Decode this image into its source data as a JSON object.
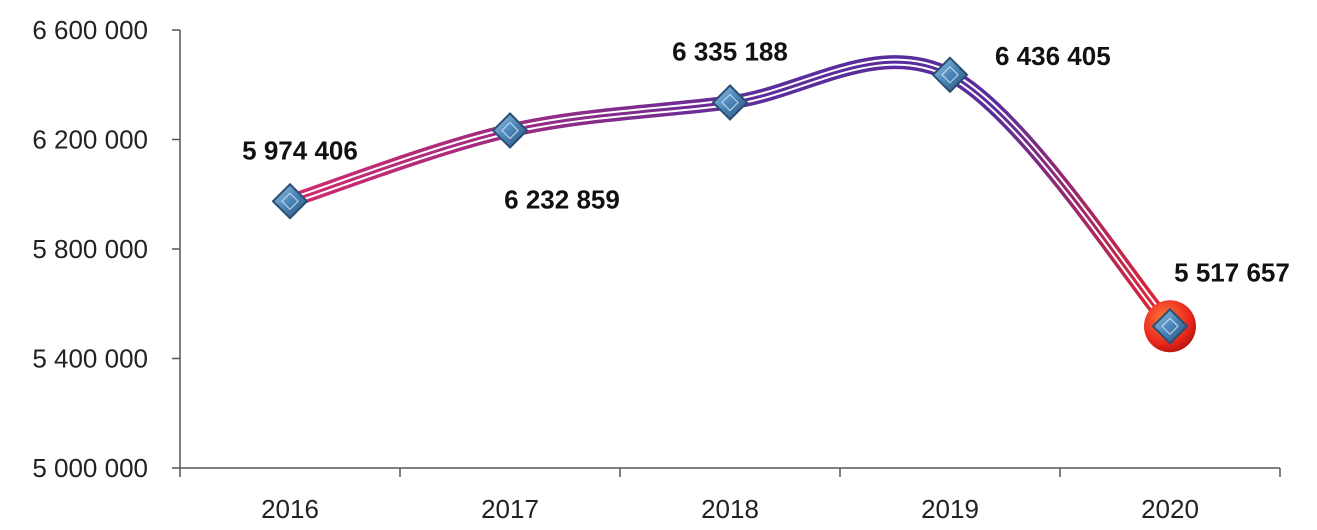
{
  "chart_data": {
    "type": "line",
    "title": "",
    "xlabel": "",
    "ylabel": "",
    "categories": [
      "2016",
      "2017",
      "2018",
      "2019",
      "2020"
    ],
    "series": [
      {
        "values": [
          5974406,
          6232859,
          6335188,
          6436405,
          5517657
        ]
      }
    ],
    "data_labels": [
      "5 974 406",
      "6 232 859",
      "6 335 188",
      "6 436 405",
      "5 517 657"
    ],
    "y_ticks": [
      5000000,
      5400000,
      5800000,
      6200000,
      6600000
    ],
    "y_tick_labels": [
      "5 000 000",
      "5 400 000",
      "5 800 000",
      "6 200 000",
      "6 600 000"
    ],
    "ylim": [
      5000000,
      6600000
    ],
    "grid": false,
    "legend": "none",
    "smooth": true,
    "highlight_index": 4,
    "colors": {
      "line_start": "#d42a6e",
      "line_mid": "#5a2d9c",
      "line_end": "#e8232e",
      "marker": "#4a86b8",
      "marker_edge": "#2b4f73",
      "highlight": "#e8261c",
      "axis": "#555555"
    }
  }
}
